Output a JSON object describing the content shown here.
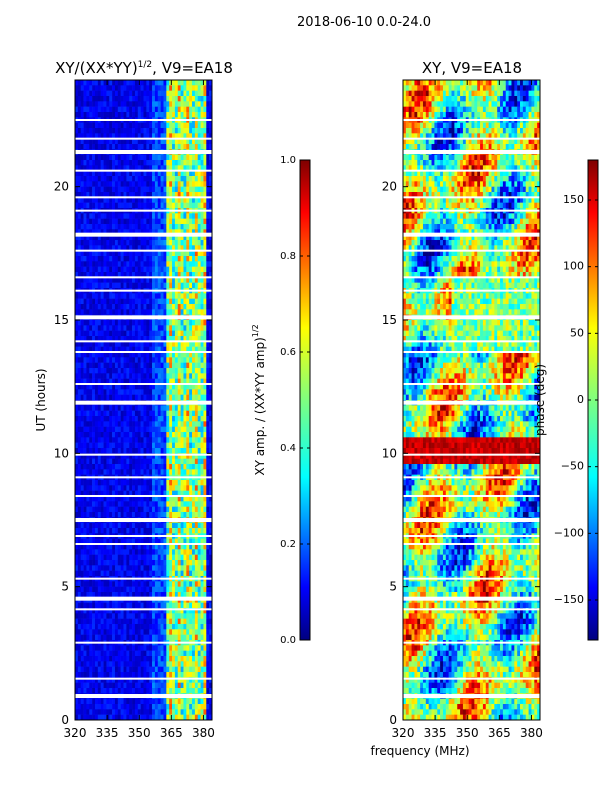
{
  "chart_data": [
    {
      "type": "heatmap",
      "figure_title": "2018-06-10 0.0-24.0",
      "title": "XY/(XX*YY)",
      "title_sup": "1/2",
      "title_suffix": ", V9=EA18",
      "ylabel": "UT (hours)",
      "xlabel": "",
      "xlim": [
        320,
        384
      ],
      "ylim": [
        0,
        24
      ],
      "x_ticks": [
        320,
        335,
        350,
        365,
        380
      ],
      "y_ticks": [
        0,
        5,
        10,
        15,
        20
      ],
      "colorbar": {
        "label": "XY amp. / (XX*YY amp)",
        "label_sup": "1/2",
        "range": [
          0.0,
          1.0
        ],
        "ticks": [
          "0.0",
          "0.2",
          "0.4",
          "0.6",
          "0.8",
          "1.0"
        ],
        "colormap": "jet"
      },
      "notes": "Mostly low amplitude (dark blue) with bright vertical bands near 363-380 MHz; horizontal white gaps where data are flagged."
    },
    {
      "type": "heatmap",
      "title": "XY, V9=EA18",
      "ylabel": "",
      "xlabel": "frequency (MHz)",
      "xlim": [
        320,
        384
      ],
      "ylim": [
        0,
        24
      ],
      "x_ticks": [
        320,
        335,
        350,
        365,
        380
      ],
      "y_ticks": [
        0,
        5,
        10,
        15,
        20
      ],
      "colorbar": {
        "label": "phase (deg)",
        "range": [
          -180,
          180
        ],
        "ticks": [
          "-150",
          "-100",
          "-50",
          "0",
          "50",
          "100",
          "150"
        ],
        "colormap": "jet"
      },
      "notes": "Phase varies across full range with coherent patches; horizontal white flagged gaps."
    }
  ],
  "colors": {
    "jet": [
      "#00007f",
      "#0000ff",
      "#007fff",
      "#00ffff",
      "#7fff7f",
      "#ffff00",
      "#ff7f00",
      "#ff0000",
      "#7f0000"
    ]
  }
}
